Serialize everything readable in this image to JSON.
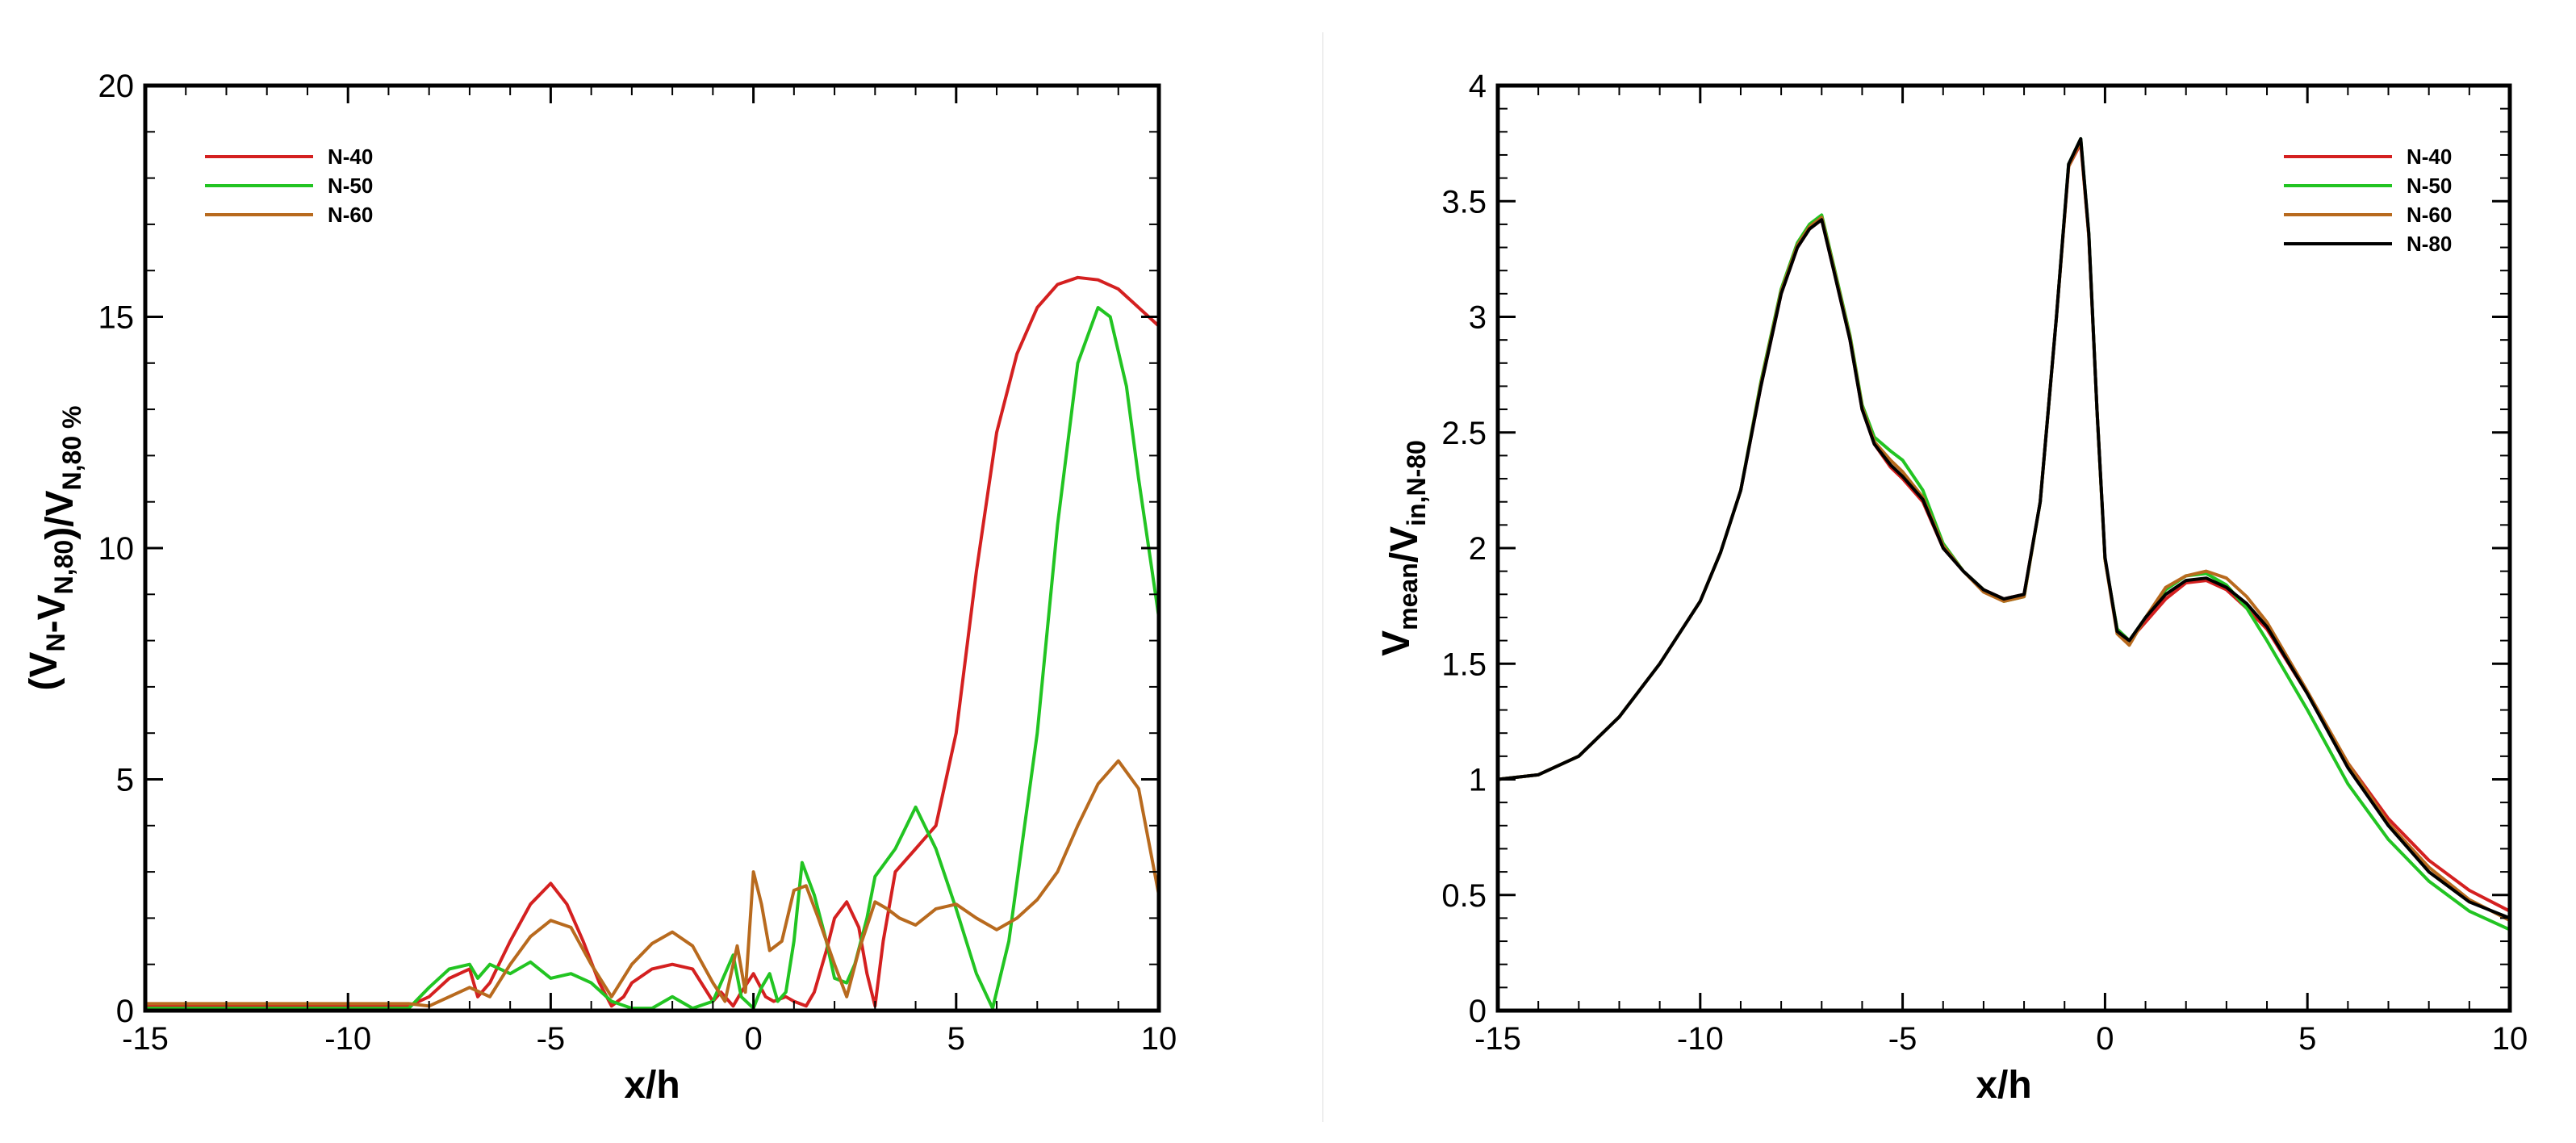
{
  "chart_data": [
    {
      "type": "line",
      "xlabel": "x/h",
      "ylabel": "(V<sub>N</sub>-V<sub>N,80</sub>)/V<sub>N,80 %</sub>",
      "xlim": [
        -15,
        10
      ],
      "ylim": [
        0,
        20
      ],
      "xticks": [
        -15,
        -10,
        -5,
        0,
        5,
        10
      ],
      "yticks": [
        0,
        5,
        10,
        15,
        20
      ],
      "legend_position": "top-left",
      "series": [
        {
          "name": "N-40",
          "color": "#d42020",
          "x": [
            -15,
            -13,
            -11,
            -9,
            -8.5,
            -8,
            -7.5,
            -7,
            -6.8,
            -6.5,
            -6,
            -5.5,
            -5,
            -4.6,
            -4.2,
            -3.8,
            -3.5,
            -3.2,
            -3,
            -2.5,
            -2,
            -1.5,
            -1,
            -0.8,
            -0.5,
            -0.3,
            0,
            0.3,
            0.5,
            0.8,
            1,
            1.3,
            1.5,
            1.8,
            2,
            2.3,
            2.6,
            2.8,
            3,
            3.2,
            3.5,
            4,
            4.5,
            5,
            5.5,
            6,
            6.5,
            7,
            7.5,
            8,
            8.5,
            9,
            9.5,
            10
          ],
          "y": [
            0.1,
            0.1,
            0.1,
            0.1,
            0.1,
            0.3,
            0.7,
            0.9,
            0.3,
            0.6,
            1.5,
            2.3,
            2.75,
            2.3,
            1.5,
            0.6,
            0.1,
            0.3,
            0.6,
            0.9,
            1.0,
            0.9,
            0.2,
            0.4,
            0.1,
            0.4,
            0.8,
            0.3,
            0.2,
            0.3,
            0.2,
            0.1,
            0.4,
            1.3,
            2.0,
            2.35,
            1.8,
            0.8,
            0.1,
            1.5,
            3.0,
            3.5,
            4.0,
            6.0,
            9.5,
            12.5,
            14.2,
            15.2,
            15.7,
            15.85,
            15.8,
            15.6,
            15.2,
            14.8
          ]
        },
        {
          "name": "N-50",
          "color": "#22c422",
          "x": [
            -15,
            -13,
            -11,
            -9,
            -8.5,
            -8,
            -7.5,
            -7,
            -6.8,
            -6.5,
            -6,
            -5.5,
            -5,
            -4.5,
            -4,
            -3.5,
            -3,
            -2.5,
            -2,
            -1.5,
            -1,
            -0.5,
            -0.3,
            0,
            0.2,
            0.4,
            0.6,
            0.8,
            1,
            1.2,
            1.5,
            1.8,
            2,
            2.3,
            2.5,
            2.8,
            3,
            3.5,
            4,
            4.5,
            5,
            5.5,
            5.9,
            6.3,
            7,
            7.5,
            8,
            8.5,
            8.8,
            9.2,
            9.5,
            10
          ],
          "y": [
            0.05,
            0.05,
            0.05,
            0.05,
            0.05,
            0.5,
            0.9,
            1.0,
            0.7,
            1.0,
            0.8,
            1.05,
            0.7,
            0.8,
            0.6,
            0.2,
            0.05,
            0.05,
            0.3,
            0.05,
            0.2,
            1.2,
            0.3,
            0.05,
            0.5,
            0.8,
            0.2,
            0.4,
            1.5,
            3.2,
            2.5,
            1.5,
            0.7,
            0.6,
            1.0,
            2.0,
            2.9,
            3.5,
            4.4,
            3.5,
            2.2,
            0.8,
            0.05,
            1.5,
            6.0,
            10.5,
            14.0,
            15.2,
            15.0,
            13.5,
            11.5,
            8.5
          ]
        },
        {
          "name": "N-60",
          "color": "#b86a1e",
          "x": [
            -15,
            -13,
            -11,
            -9,
            -8.5,
            -8,
            -7.5,
            -7,
            -6.5,
            -6,
            -5.5,
            -5,
            -4.5,
            -4,
            -3.5,
            -3,
            -2.5,
            -2,
            -1.5,
            -1,
            -0.7,
            -0.4,
            -0.2,
            0,
            0.2,
            0.4,
            0.7,
            1,
            1.3,
            1.6,
            2,
            2.3,
            2.6,
            3,
            3.3,
            3.6,
            4,
            4.5,
            5,
            5.5,
            6,
            6.5,
            7,
            7.5,
            8,
            8.5,
            9,
            9.5,
            10
          ],
          "y": [
            0.15,
            0.15,
            0.15,
            0.15,
            0.15,
            0.1,
            0.3,
            0.5,
            0.3,
            1.0,
            1.6,
            1.95,
            1.8,
            1.0,
            0.3,
            1.0,
            1.45,
            1.7,
            1.4,
            0.6,
            0.2,
            1.4,
            0.4,
            3.0,
            2.3,
            1.3,
            1.5,
            2.6,
            2.7,
            2.0,
            1.0,
            0.3,
            1.3,
            2.35,
            2.2,
            2.0,
            1.85,
            2.2,
            2.3,
            2.0,
            1.75,
            2.0,
            2.4,
            3.0,
            4.0,
            4.9,
            5.4,
            4.8,
            2.5
          ]
        }
      ]
    },
    {
      "type": "line",
      "xlabel": "x/h",
      "ylabel": "V<sub>mean</sub>/V<sub>in,N-80</sub>",
      "xlim": [
        -15,
        10
      ],
      "ylim": [
        0,
        4
      ],
      "xticks": [
        -15,
        -10,
        -5,
        0,
        5,
        10
      ],
      "yticks": [
        0,
        0.5,
        1,
        1.5,
        2,
        2.5,
        3,
        3.5,
        4
      ],
      "legend_position": "top-right",
      "series": [
        {
          "name": "N-40",
          "color": "#d42020",
          "x": [
            -15,
            -14,
            -13,
            -12,
            -11,
            -10,
            -9.5,
            -9,
            -8.5,
            -8,
            -7.6,
            -7.3,
            -7,
            -6.7,
            -6.3,
            -6,
            -5.7,
            -5.3,
            -5,
            -4.5,
            -4,
            -3.5,
            -3,
            -2.5,
            -2,
            -1.6,
            -1.2,
            -0.9,
            -0.6,
            -0.4,
            -0.2,
            0,
            0.3,
            0.6,
            1,
            1.5,
            2,
            2.5,
            3,
            3.5,
            4,
            5,
            6,
            7,
            8,
            9,
            10
          ],
          "y": [
            1.0,
            1.02,
            1.1,
            1.27,
            1.5,
            1.77,
            1.98,
            2.25,
            2.7,
            3.1,
            3.3,
            3.38,
            3.42,
            3.2,
            2.9,
            2.6,
            2.45,
            2.35,
            2.3,
            2.2,
            2.0,
            1.9,
            1.82,
            1.78,
            1.8,
            2.2,
            3.0,
            3.65,
            3.75,
            3.35,
            2.6,
            1.95,
            1.65,
            1.6,
            1.68,
            1.78,
            1.85,
            1.86,
            1.82,
            1.74,
            1.65,
            1.37,
            1.07,
            0.83,
            0.65,
            0.52,
            0.43
          ]
        },
        {
          "name": "N-50",
          "color": "#22c422",
          "x": [
            -15,
            -14,
            -13,
            -12,
            -11,
            -10,
            -9.5,
            -9,
            -8.5,
            -8,
            -7.6,
            -7.3,
            -7,
            -6.7,
            -6.3,
            -6,
            -5.7,
            -5.3,
            -5,
            -4.5,
            -4,
            -3.5,
            -3,
            -2.5,
            -2,
            -1.6,
            -1.2,
            -0.9,
            -0.6,
            -0.4,
            -0.2,
            0,
            0.3,
            0.6,
            1,
            1.5,
            2,
            2.5,
            3,
            3.5,
            4,
            5,
            6,
            7,
            8,
            9,
            10
          ],
          "y": [
            1.0,
            1.02,
            1.1,
            1.27,
            1.5,
            1.77,
            1.98,
            2.25,
            2.72,
            3.12,
            3.32,
            3.4,
            3.44,
            3.22,
            2.92,
            2.62,
            2.48,
            2.42,
            2.38,
            2.25,
            2.02,
            1.9,
            1.82,
            1.77,
            1.79,
            2.2,
            3.0,
            3.66,
            3.77,
            3.36,
            2.6,
            1.95,
            1.65,
            1.6,
            1.7,
            1.82,
            1.88,
            1.89,
            1.84,
            1.74,
            1.6,
            1.3,
            0.98,
            0.74,
            0.56,
            0.43,
            0.35
          ]
        },
        {
          "name": "N-60",
          "color": "#b86a1e",
          "x": [
            -15,
            -14,
            -13,
            -12,
            -11,
            -10,
            -9.5,
            -9,
            -8.5,
            -8,
            -7.6,
            -7.3,
            -7,
            -6.7,
            -6.3,
            -6,
            -5.7,
            -5.3,
            -5,
            -4.5,
            -4,
            -3.5,
            -3,
            -2.5,
            -2,
            -1.6,
            -1.2,
            -0.9,
            -0.6,
            -0.4,
            -0.2,
            0,
            0.3,
            0.6,
            1,
            1.5,
            2,
            2.5,
            3,
            3.5,
            4,
            5,
            6,
            7,
            8,
            9,
            10
          ],
          "y": [
            1.0,
            1.02,
            1.1,
            1.27,
            1.5,
            1.77,
            1.98,
            2.25,
            2.71,
            3.11,
            3.31,
            3.39,
            3.43,
            3.21,
            2.91,
            2.61,
            2.46,
            2.38,
            2.33,
            2.22,
            2.01,
            1.9,
            1.81,
            1.77,
            1.79,
            2.2,
            3.0,
            3.65,
            3.76,
            3.35,
            2.6,
            1.95,
            1.63,
            1.58,
            1.7,
            1.83,
            1.88,
            1.9,
            1.87,
            1.79,
            1.68,
            1.38,
            1.07,
            0.81,
            0.62,
            0.48,
            0.39
          ]
        },
        {
          "name": "N-80",
          "color": "#000000",
          "x": [
            -15,
            -14,
            -13,
            -12,
            -11,
            -10,
            -9.5,
            -9,
            -8.5,
            -8,
            -7.6,
            -7.3,
            -7,
            -6.7,
            -6.3,
            -6,
            -5.7,
            -5.3,
            -5,
            -4.5,
            -4,
            -3.5,
            -3,
            -2.5,
            -2,
            -1.6,
            -1.2,
            -0.9,
            -0.6,
            -0.4,
            -0.2,
            0,
            0.3,
            0.6,
            1,
            1.5,
            2,
            2.5,
            3,
            3.5,
            4,
            5,
            6,
            7,
            8,
            9,
            10
          ],
          "y": [
            1.0,
            1.02,
            1.1,
            1.27,
            1.5,
            1.77,
            1.98,
            2.25,
            2.7,
            3.1,
            3.3,
            3.38,
            3.42,
            3.2,
            2.9,
            2.6,
            2.45,
            2.36,
            2.31,
            2.21,
            2.0,
            1.9,
            1.82,
            1.78,
            1.8,
            2.2,
            3.0,
            3.66,
            3.77,
            3.36,
            2.6,
            1.96,
            1.64,
            1.6,
            1.7,
            1.8,
            1.86,
            1.87,
            1.83,
            1.76,
            1.66,
            1.37,
            1.05,
            0.8,
            0.6,
            0.47,
            0.4
          ]
        }
      ]
    }
  ]
}
